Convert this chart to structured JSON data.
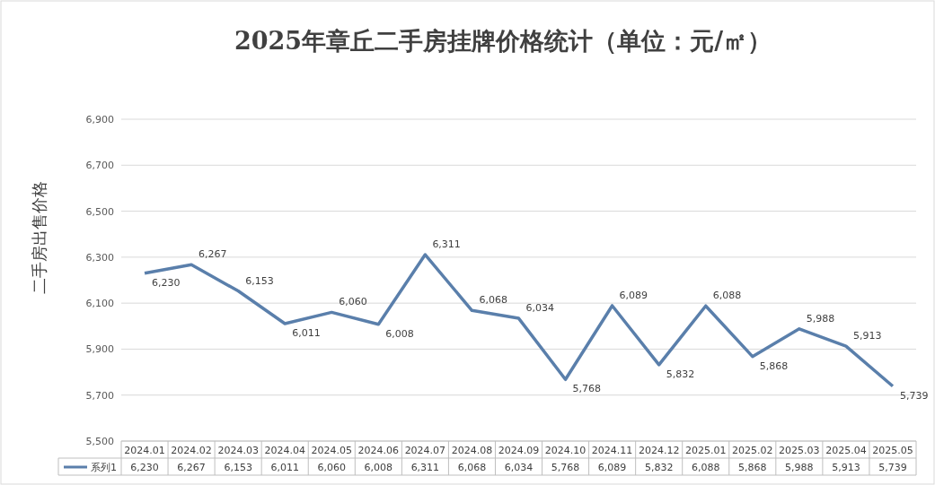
{
  "chart_data": {
    "type": "line",
    "title": "2025年章丘二手房挂牌价格统计（单位：元/㎡）",
    "ylabel": "二手房出售价格",
    "categories": [
      "2024.01",
      "2024.02",
      "2024.03",
      "2024.04",
      "2024.05",
      "2024.06",
      "2024.07",
      "2024.08",
      "2024.09",
      "2024.10",
      "2024.11",
      "2024.12",
      "2025.01",
      "2025.02",
      "2025.03",
      "2025.04",
      "2025.05"
    ],
    "series": [
      {
        "name": "系列1",
        "color": "#5a7fab",
        "values": [
          6230,
          6267,
          6153,
          6011,
          6060,
          6008,
          6311,
          6068,
          6034,
          5768,
          6089,
          5832,
          6088,
          5868,
          5988,
          5913,
          5739
        ],
        "value_labels": [
          "6,230",
          "6,267",
          "6,153",
          "6,011",
          "6,060",
          "6,008",
          "6,311",
          "6,068",
          "6,034",
          "5,768",
          "6,089",
          "5,832",
          "6,088",
          "5,868",
          "5,988",
          "5,913",
          "5,739"
        ]
      }
    ],
    "ylim": [
      5500,
      6900
    ],
    "yticks": [
      {
        "value": 5500,
        "label": "5,500"
      },
      {
        "value": 5700,
        "label": "5,700"
      },
      {
        "value": 5900,
        "label": "5,900"
      },
      {
        "value": 6100,
        "label": "6,100"
      },
      {
        "value": 6300,
        "label": "6,300"
      },
      {
        "value": 6500,
        "label": "6,500"
      },
      {
        "value": 6700,
        "label": "6,700"
      },
      {
        "value": 6900,
        "label": "6,900"
      }
    ],
    "grid": "y",
    "legend": "bottom",
    "marker": "none",
    "line_style": "solid"
  }
}
